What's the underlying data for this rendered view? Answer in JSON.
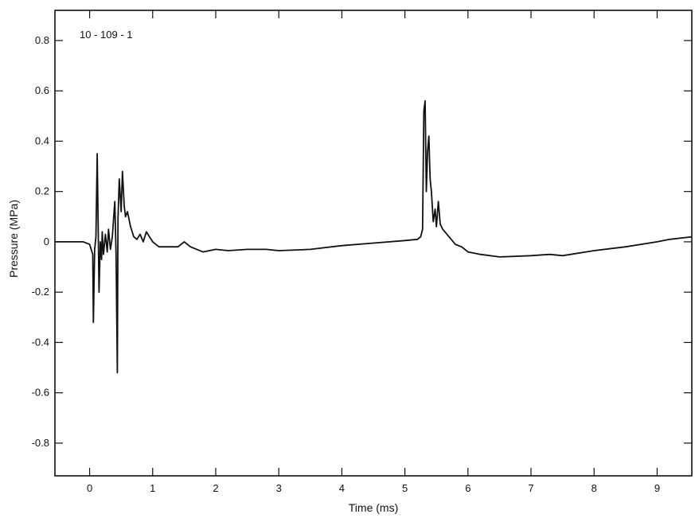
{
  "chart_data": {
    "type": "line",
    "title": "",
    "annotation": "10 - 109 - 1",
    "xlabel": "Time (ms)",
    "ylabel": "Pressure (MPa)",
    "xlim": [
      -0.55,
      9.55
    ],
    "ylim": [
      -0.93,
      0.92
    ],
    "x_ticks": [
      0,
      1,
      2,
      3,
      4,
      5,
      6,
      7,
      8,
      9
    ],
    "x_tick_labels": [
      "0",
      "1",
      "2",
      "3",
      "4",
      "5",
      "6",
      "7",
      "8",
      "9"
    ],
    "y_ticks": [
      0.8,
      0.6,
      0.4,
      0.2,
      0,
      -0.2,
      -0.4,
      -0.6,
      -0.8
    ],
    "y_tick_labels": [
      "0.8",
      "0.6",
      "0.4",
      "0.2",
      "0",
      "-0.2",
      "-0.4",
      "-0.6",
      "-0.8"
    ],
    "grid": false,
    "series": [
      {
        "x": [
          -0.55,
          -0.3,
          -0.1,
          0.0,
          0.05,
          0.06,
          0.08,
          0.1,
          0.12,
          0.14,
          0.15,
          0.17,
          0.19,
          0.2,
          0.22,
          0.25,
          0.28,
          0.3,
          0.33,
          0.36,
          0.4,
          0.42,
          0.44,
          0.45,
          0.47,
          0.5,
          0.52,
          0.55,
          0.57,
          0.6,
          0.65,
          0.7,
          0.75,
          0.8,
          0.85,
          0.9,
          0.95,
          1.0,
          1.05,
          1.1,
          1.2,
          1.3,
          1.4,
          1.5,
          1.6,
          1.7,
          1.8,
          2.0,
          2.2,
          2.5,
          2.8,
          3.0,
          3.5,
          4.0,
          4.5,
          5.0,
          5.2,
          5.25,
          5.28,
          5.3,
          5.32,
          5.34,
          5.36,
          5.38,
          5.4,
          5.42,
          5.45,
          5.48,
          5.5,
          5.53,
          5.56,
          5.6,
          5.7,
          5.8,
          5.9,
          6.0,
          6.2,
          6.5,
          7.0,
          7.3,
          7.5,
          8.0,
          8.5,
          9.0,
          9.2,
          9.55
        ],
        "y": [
          0.0,
          0.0,
          0.0,
          -0.01,
          -0.05,
          -0.32,
          -0.03,
          0.02,
          0.35,
          -0.03,
          -0.2,
          0.0,
          -0.07,
          0.04,
          -0.05,
          0.03,
          -0.04,
          0.05,
          -0.03,
          0.02,
          0.16,
          -0.05,
          -0.52,
          0.09,
          0.25,
          0.12,
          0.28,
          0.14,
          0.1,
          0.12,
          0.06,
          0.02,
          0.01,
          0.03,
          0.0,
          0.04,
          0.02,
          0.0,
          -0.01,
          -0.02,
          -0.02,
          -0.02,
          -0.02,
          0.0,
          -0.02,
          -0.03,
          -0.04,
          -0.03,
          -0.035,
          -0.03,
          -0.03,
          -0.035,
          -0.03,
          -0.015,
          -0.005,
          0.005,
          0.01,
          0.02,
          0.05,
          0.52,
          0.56,
          0.2,
          0.36,
          0.42,
          0.25,
          0.2,
          0.08,
          0.13,
          0.06,
          0.16,
          0.07,
          0.05,
          0.02,
          -0.01,
          -0.02,
          -0.04,
          -0.05,
          -0.06,
          -0.055,
          -0.05,
          -0.055,
          -0.035,
          -0.02,
          0.0,
          0.01,
          0.02
        ]
      }
    ]
  }
}
